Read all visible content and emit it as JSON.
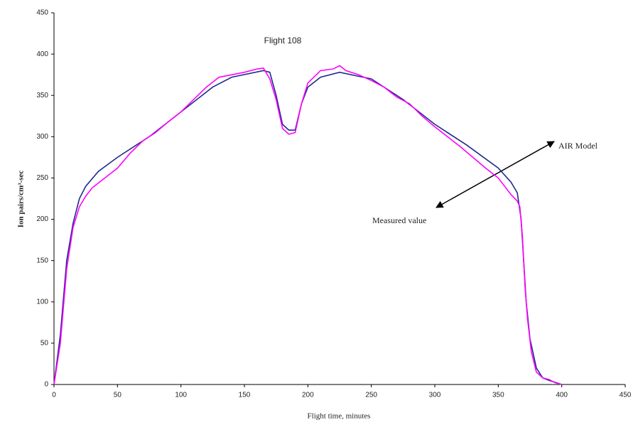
{
  "chart_data": {
    "type": "line",
    "title": "Flight 108",
    "x_label": "Flight time, minutes",
    "y_label": "Ion pairs/cm³-sec",
    "xlim": [
      0,
      450
    ],
    "xticks": [
      0,
      50,
      100,
      150,
      200,
      250,
      300,
      350,
      400,
      450
    ],
    "ylim": [
      0,
      450
    ],
    "yticks": [
      0,
      50,
      100,
      150,
      200,
      250,
      300,
      350,
      400,
      450
    ],
    "series": [
      {
        "name": "AIR Model",
        "color": "#1f2a8a",
        "x": [
          0,
          5,
          10,
          15,
          20,
          25,
          35,
          50,
          75,
          100,
          125,
          140,
          165,
          170,
          175,
          180,
          185,
          190,
          195,
          200,
          210,
          225,
          250,
          275,
          300,
          325,
          350,
          360,
          365,
          368,
          370,
          372,
          375,
          380,
          385,
          390,
          400
        ],
        "values": [
          0,
          60,
          150,
          195,
          225,
          240,
          258,
          275,
          300,
          330,
          360,
          372,
          380,
          378,
          350,
          315,
          308,
          308,
          340,
          360,
          372,
          378,
          370,
          345,
          315,
          290,
          262,
          245,
          232,
          200,
          150,
          100,
          55,
          20,
          8,
          5,
          0
        ]
      },
      {
        "name": "Measured value",
        "color": "#ff00ff",
        "x": [
          0,
          5,
          10,
          15,
          20,
          25,
          30,
          40,
          50,
          60,
          70,
          80,
          90,
          100,
          110,
          120,
          130,
          140,
          150,
          160,
          165,
          170,
          175,
          180,
          185,
          190,
          195,
          200,
          210,
          220,
          225,
          230,
          240,
          250,
          260,
          270,
          280,
          290,
          300,
          310,
          320,
          330,
          340,
          350,
          355,
          360,
          365,
          367,
          369,
          371,
          373,
          376,
          380,
          385,
          390,
          395,
          400
        ],
        "values": [
          0,
          50,
          140,
          190,
          215,
          228,
          238,
          250,
          262,
          280,
          295,
          305,
          318,
          330,
          345,
          360,
          372,
          375,
          378,
          382,
          383,
          370,
          345,
          310,
          303,
          305,
          340,
          365,
          380,
          382,
          386,
          380,
          375,
          368,
          360,
          348,
          340,
          325,
          312,
          300,
          288,
          275,
          262,
          250,
          240,
          230,
          222,
          215,
          180,
          120,
          80,
          40,
          15,
          8,
          6,
          2,
          0
        ]
      }
    ]
  }
}
